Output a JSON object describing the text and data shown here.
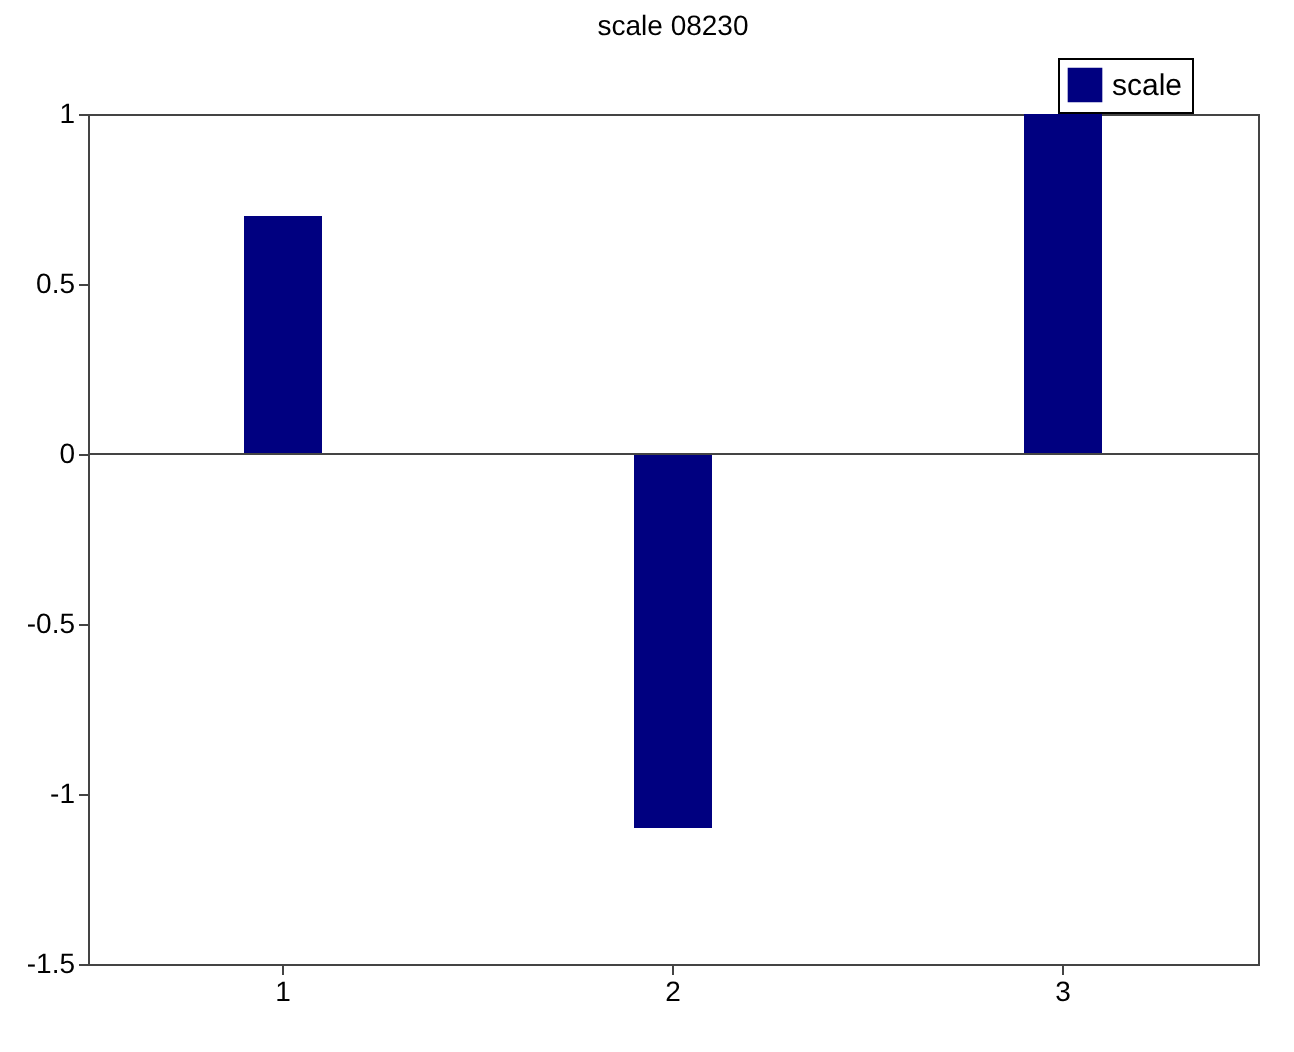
{
  "chart_data": {
    "type": "bar",
    "title": "scale 08230",
    "categories": [
      "1",
      "2",
      "3"
    ],
    "series": [
      {
        "name": "scale",
        "color": "#000080",
        "values": [
          0.7,
          -1.1,
          1.0
        ]
      }
    ],
    "ylim": [
      -1.5,
      1
    ],
    "yticks": [
      -1.5,
      -1,
      -0.5,
      0,
      0.5,
      1
    ],
    "ref_lines": [
      {
        "axis": "y",
        "value": 0,
        "color": "#444444"
      }
    ],
    "grid": false,
    "legend": "top right"
  }
}
